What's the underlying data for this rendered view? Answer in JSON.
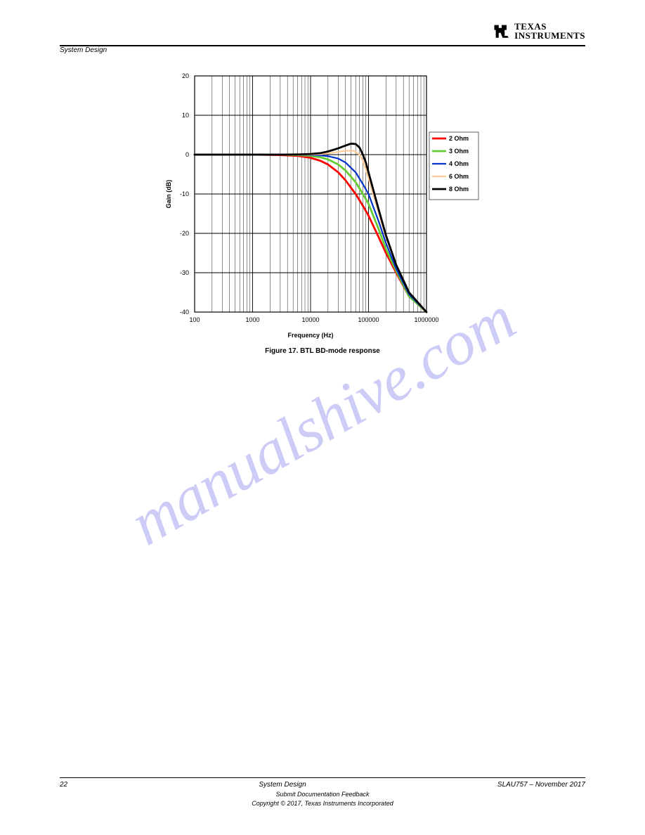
{
  "header": {
    "logo_texas": "TEXAS",
    "logo_instruments": "INSTRUMENTS",
    "section_label": "System Design"
  },
  "chart": {
    "type": "line",
    "xlabel": "Frequency (Hz)",
    "ylabel": "Gain (dB)",
    "label_fontsize": 9,
    "label_fontweight": "bold",
    "xscale": "log",
    "xlim": [
      100,
      1000000
    ],
    "xtick_labels": [
      "100",
      "1000",
      "10000",
      "100000",
      "1000000"
    ],
    "ylim": [
      -40,
      20
    ],
    "ytick_step": 10,
    "ytick_labels": [
      "-40",
      "-30",
      "-20",
      "-10",
      "0",
      "10",
      "20"
    ],
    "background_color": "#ffffff",
    "grid_color": "#000000",
    "grid_width": 0.5,
    "axis_color": "#000000",
    "line_width_default": 2.2,
    "series": [
      {
        "label": "2 Ohm",
        "color": "#ff0000",
        "line_width": 2.8,
        "freq": [
          100,
          300,
          1000,
          3000,
          6000,
          10000,
          15000,
          20000,
          30000,
          40000,
          60000,
          80000,
          100000,
          150000,
          200000,
          300000,
          500000,
          1000000
        ],
        "gain": [
          0,
          0,
          0,
          -0.1,
          -0.3,
          -0.8,
          -1.6,
          -2.5,
          -4.5,
          -6.5,
          -10.0,
          -13.0,
          -15.5,
          -21,
          -25,
          -30,
          -36,
          -42
        ]
      },
      {
        "label": "3 Ohm",
        "color": "#66cc33",
        "line_width": 2.8,
        "freq": [
          100,
          300,
          1000,
          3000,
          6000,
          10000,
          15000,
          20000,
          30000,
          40000,
          60000,
          80000,
          100000,
          150000,
          200000,
          300000,
          500000,
          1000000
        ],
        "gain": [
          0,
          0,
          0,
          0,
          -0.1,
          -0.3,
          -0.7,
          -1.2,
          -2.5,
          -4.0,
          -7.0,
          -10.0,
          -12.5,
          -19,
          -24,
          -29.5,
          -36,
          -42
        ]
      },
      {
        "label": "4 Ohm",
        "color": "#0033cc",
        "line_width": 2.2,
        "freq": [
          100,
          300,
          1000,
          3000,
          6000,
          10000,
          15000,
          20000,
          30000,
          40000,
          60000,
          80000,
          100000,
          150000,
          200000,
          300000,
          500000,
          1000000
        ],
        "gain": [
          0,
          0,
          0,
          0,
          0,
          -0.1,
          -0.2,
          -0.4,
          -1.0,
          -2.0,
          -4.5,
          -7.5,
          -10.0,
          -17,
          -22.5,
          -29,
          -35.5,
          -42
        ]
      },
      {
        "label": "6 Ohm",
        "color": "#ffcc99",
        "line_width": 2.2,
        "freq": [
          100,
          300,
          1000,
          3000,
          6000,
          10000,
          15000,
          20000,
          30000,
          40000,
          55000,
          70000,
          80000,
          100000,
          150000,
          200000,
          300000,
          500000,
          1000000
        ],
        "gain": [
          0,
          0,
          0,
          0,
          0,
          0,
          0.1,
          0.3,
          0.7,
          1.0,
          1.0,
          0.0,
          -1.5,
          -6.0,
          -15,
          -21,
          -28,
          -35,
          -42
        ]
      },
      {
        "label": "8 Ohm",
        "color": "#000000",
        "line_width": 2.8,
        "freq": [
          100,
          300,
          1000,
          3000,
          6000,
          10000,
          15000,
          20000,
          30000,
          40000,
          50000,
          60000,
          70000,
          80000,
          90000,
          100000,
          150000,
          200000,
          300000,
          500000,
          1000000
        ],
        "gain": [
          0,
          0,
          0,
          0,
          0.05,
          0.15,
          0.4,
          0.8,
          1.6,
          2.3,
          2.8,
          2.7,
          1.8,
          0.0,
          -2.0,
          -4.5,
          -14,
          -20.5,
          -28,
          -35,
          -42
        ]
      }
    ],
    "legend": {
      "position": "right",
      "fontsize": 9,
      "fontweight": "bold"
    },
    "caption": "Figure 17. BTL BD-mode response"
  },
  "watermark": "manualshive.com",
  "footer": {
    "page_number": "22",
    "doc_title": "System Design",
    "doc_ref": "SLAU757 – November 2017",
    "disclaimer_line1": "Submit Documentation Feedback",
    "copyright": "Copyright © 2017, Texas Instruments Incorporated"
  }
}
